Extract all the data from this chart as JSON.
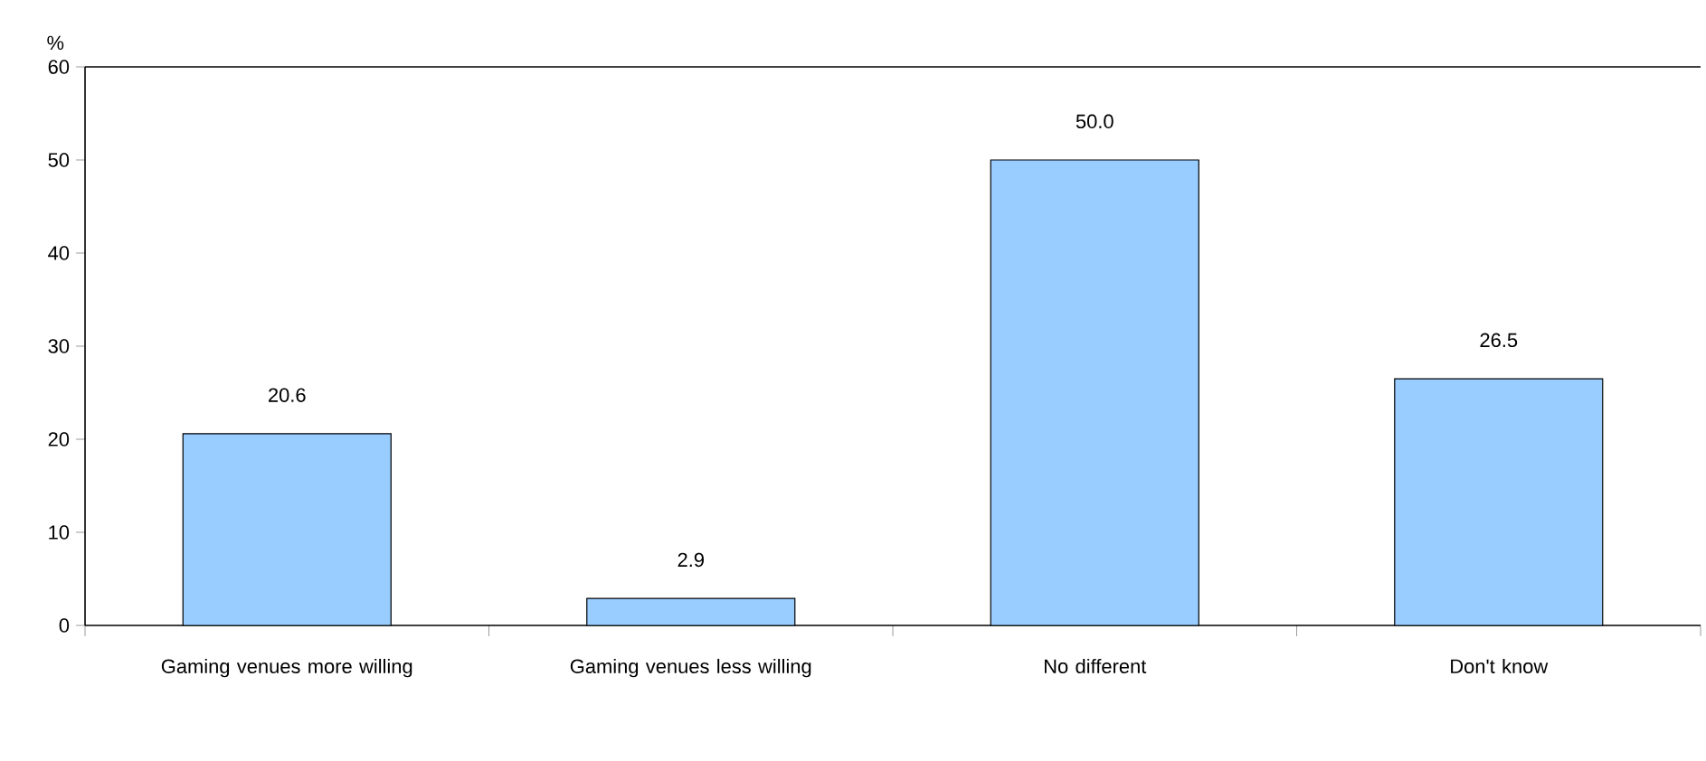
{
  "chart_data": {
    "type": "bar",
    "ylabel": "%",
    "categories": [
      "Gaming venues more willing",
      "Gaming venues less willing",
      "No different",
      "Don't know"
    ],
    "values": [
      20.6,
      2.9,
      50.0,
      26.5
    ],
    "value_labels": [
      "20.6",
      "2.9",
      "50.0",
      "26.5"
    ],
    "color": "#99ccff",
    "ylim": [
      0,
      60
    ],
    "yticks": [
      0,
      10,
      20,
      30,
      40,
      50,
      60
    ],
    "grid": false
  }
}
